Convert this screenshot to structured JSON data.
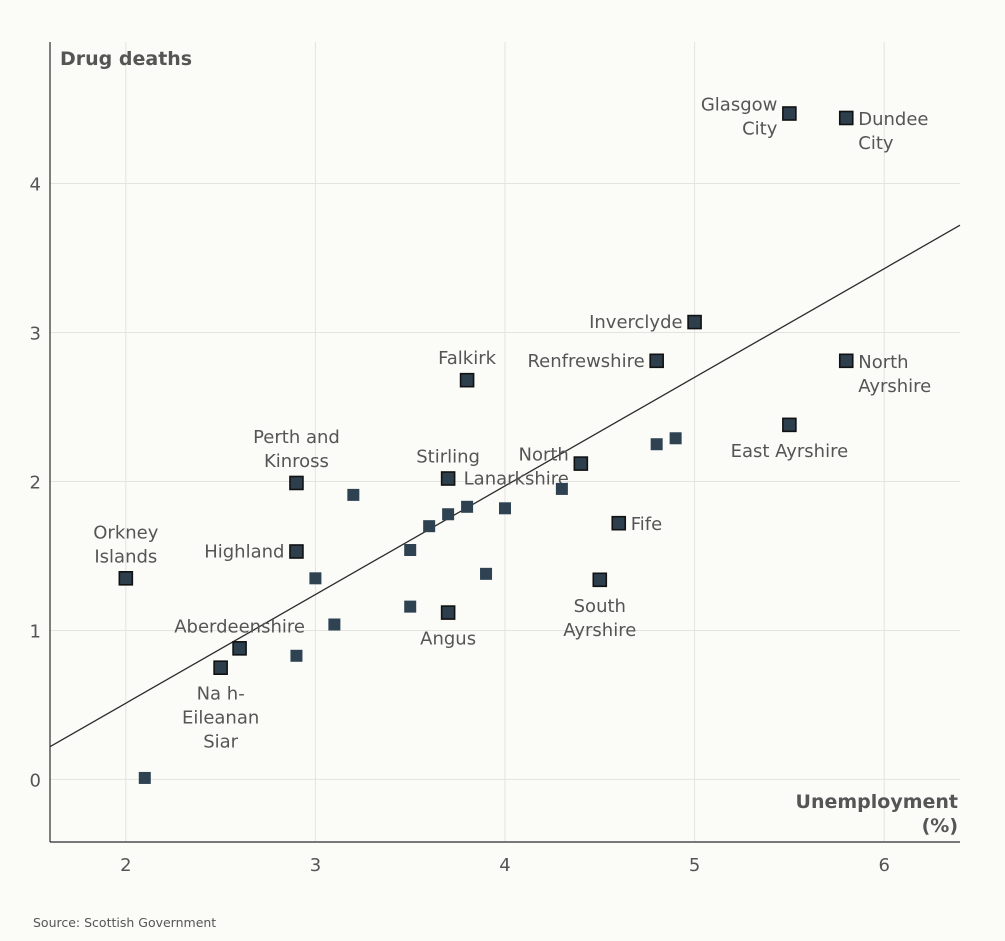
{
  "chart_data": {
    "type": "scatter",
    "title": "",
    "xlabel_lines": [
      "Unemployment",
      "(%)"
    ],
    "ylabel": "Drug deaths",
    "xlim": [
      1.6,
      6.4
    ],
    "ylim": [
      -0.42,
      4.95
    ],
    "xticks": [
      2,
      3,
      4,
      5,
      6
    ],
    "yticks": [
      0,
      1,
      2,
      3,
      4
    ],
    "grid": true,
    "trendline": {
      "x": [
        1.6,
        6.4
      ],
      "y": [
        0.22,
        3.72
      ]
    },
    "points": [
      {
        "x": 5.5,
        "y": 4.47,
        "lines": [
          "Glasgow",
          "City"
        ],
        "anchor": "end",
        "highlight": true
      },
      {
        "x": 5.8,
        "y": 4.44,
        "lines": [
          "Dundee",
          "City"
        ],
        "anchor": "start",
        "highlight": true
      },
      {
        "x": 5.0,
        "y": 3.07,
        "lines": [
          "Inverclyde"
        ],
        "anchor": "end",
        "highlight": true
      },
      {
        "x": 4.8,
        "y": 2.81,
        "lines": [
          "Renfrewshire"
        ],
        "anchor": "end",
        "highlight": true
      },
      {
        "x": 5.8,
        "y": 2.81,
        "lines": [
          "North",
          "Ayrshire"
        ],
        "anchor": "start",
        "highlight": true
      },
      {
        "x": 3.8,
        "y": 2.68,
        "lines": [
          "Falkirk"
        ],
        "anchor": "middle",
        "highlight": true
      },
      {
        "x": 5.5,
        "y": 2.38,
        "lines": [
          "East Ayrshire"
        ],
        "anchor": "middle",
        "highlight": true
      },
      {
        "x": 4.4,
        "y": 2.12,
        "lines": [
          "North",
          "Lanarkshire"
        ],
        "anchor": "end",
        "highlight": true
      },
      {
        "x": 3.7,
        "y": 2.02,
        "lines": [
          "Stirling"
        ],
        "anchor": "middle",
        "highlight": true
      },
      {
        "x": 2.9,
        "y": 1.99,
        "lines": [
          "Perth and",
          "Kinross"
        ],
        "anchor": "middle",
        "highlight": true
      },
      {
        "x": 4.6,
        "y": 1.72,
        "lines": [
          "Fife"
        ],
        "anchor": "start",
        "highlight": true
      },
      {
        "x": 2.9,
        "y": 1.53,
        "lines": [
          "Highland"
        ],
        "anchor": "end",
        "highlight": true
      },
      {
        "x": 2.0,
        "y": 1.35,
        "lines": [
          "Orkney",
          "Islands"
        ],
        "anchor": "middle",
        "highlight": true
      },
      {
        "x": 4.5,
        "y": 1.34,
        "lines": [
          "South",
          "Ayrshire"
        ],
        "anchor": "middle",
        "highlight": true
      },
      {
        "x": 3.7,
        "y": 1.12,
        "lines": [
          "Angus"
        ],
        "anchor": "middle",
        "highlight": true
      },
      {
        "x": 2.6,
        "y": 0.88,
        "lines": [
          "Aberdeenshire"
        ],
        "anchor": "middle",
        "highlight": true
      },
      {
        "x": 2.5,
        "y": 0.75,
        "lines": [
          "Na h-",
          "Eileanan",
          "Siar"
        ],
        "anchor": "middle",
        "highlight": true
      },
      {
        "x": 3.2,
        "y": 1.91,
        "highlight": false
      },
      {
        "x": 3.8,
        "y": 1.83,
        "highlight": false
      },
      {
        "x": 3.7,
        "y": 1.78,
        "highlight": false
      },
      {
        "x": 3.6,
        "y": 1.7,
        "highlight": false
      },
      {
        "x": 4.0,
        "y": 1.82,
        "highlight": false
      },
      {
        "x": 4.3,
        "y": 1.95,
        "highlight": false
      },
      {
        "x": 4.8,
        "y": 2.25,
        "highlight": false
      },
      {
        "x": 4.9,
        "y": 2.29,
        "highlight": false
      },
      {
        "x": 3.5,
        "y": 1.54,
        "highlight": false
      },
      {
        "x": 3.0,
        "y": 1.35,
        "highlight": false
      },
      {
        "x": 3.9,
        "y": 1.38,
        "highlight": false
      },
      {
        "x": 3.5,
        "y": 1.16,
        "highlight": false
      },
      {
        "x": 3.1,
        "y": 1.04,
        "highlight": false
      },
      {
        "x": 2.9,
        "y": 0.83,
        "highlight": false
      },
      {
        "x": 2.1,
        "y": 0.01,
        "highlight": false
      }
    ],
    "colors": {
      "marker_fill": "#2d3f4d",
      "marker_stroke": "#111111",
      "marker_plain": "#2e4252"
    }
  },
  "source": "Source: Scottish Government"
}
